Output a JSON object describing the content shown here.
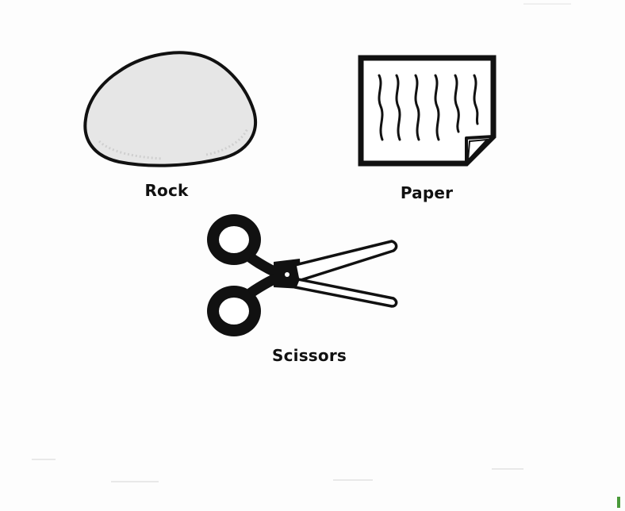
{
  "items": [
    {
      "label": "Rock",
      "icon": "rock-icon"
    },
    {
      "label": "Paper",
      "icon": "paper-icon"
    },
    {
      "label": "Scissors",
      "icon": "scissors-icon"
    }
  ],
  "colors": {
    "ink": "#111111",
    "rock_fill": "#e6e6e6",
    "paper_fill": "#ffffff",
    "accent_green": "#4a9a3a"
  }
}
